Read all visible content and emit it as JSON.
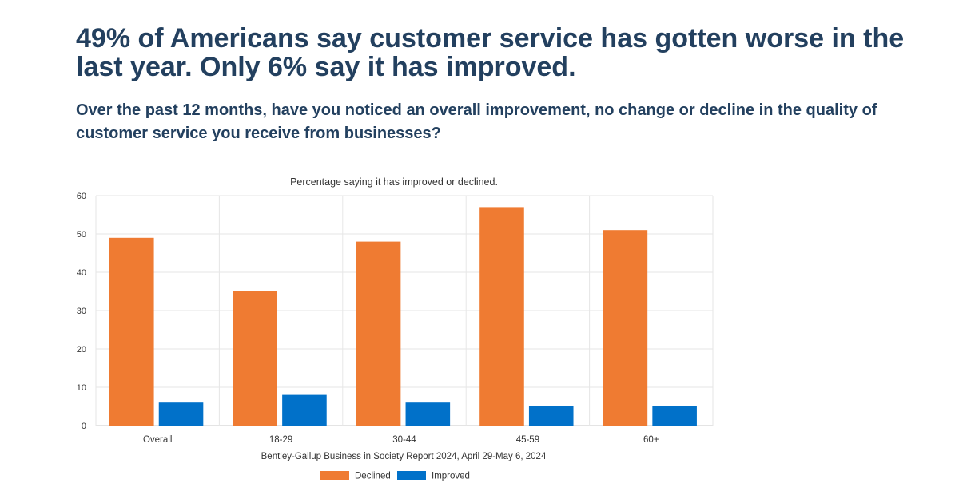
{
  "headline": "49% of Americans say customer service has gotten worse in the last year. Only 6% say it has improved.",
  "subheadline": "Over the past 12 months, have you noticed an overall improvement, no change or decline in the quality of customer service you receive from businesses?",
  "chart_data": {
    "type": "bar",
    "title": "Percentage saying it has improved or declined.",
    "xlabel": "Bentley-Gallup Business in Society Report 2024, April 29-May 6, 2024",
    "ylabel": "",
    "categories": [
      "Overall",
      "18-29",
      "30-44",
      "45-59",
      "60+"
    ],
    "series": [
      {
        "name": "Declined",
        "color": "#ef7b32",
        "values": [
          49,
          35,
          48,
          57,
          51
        ]
      },
      {
        "name": "Improved",
        "color": "#0171c9",
        "values": [
          6,
          8,
          6,
          5,
          5
        ]
      }
    ],
    "ylim": [
      0,
      60
    ],
    "yticks": [
      0,
      10,
      20,
      30,
      40,
      50,
      60
    ],
    "grid": true,
    "legend": "bottom"
  }
}
